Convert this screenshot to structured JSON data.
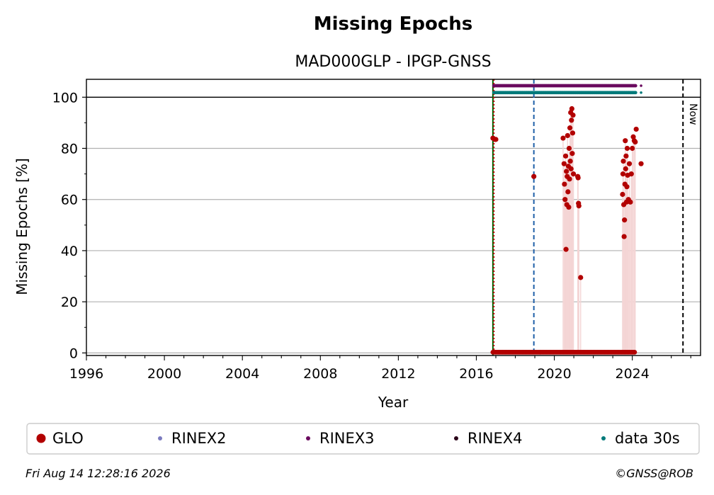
{
  "chart_data": {
    "type": "scatter",
    "title": "Missing Epochs",
    "subtitle": "MAD000GLP - IPGP-GNSS",
    "xlabel": "Year",
    "ylabel": "Missing Epochs [%]",
    "xlim": [
      1996,
      2027.5
    ],
    "ylim": [
      -1,
      107
    ],
    "xticks": [
      "1996",
      "2000",
      "2004",
      "2008",
      "2012",
      "2016",
      "2020",
      "2024"
    ],
    "yticks": [
      "0",
      "20",
      "40",
      "60",
      "80",
      "100"
    ],
    "grid": "y",
    "reference_line_y": 100,
    "vertical_lines": [
      {
        "x": 2016.85,
        "color": "#006400",
        "style": "solid"
      },
      {
        "x": 2016.9,
        "color": "#cc0000",
        "style": "dotted"
      },
      {
        "x": 2018.95,
        "color": "#1f5fa8",
        "style": "dashed"
      },
      {
        "x": 2026.6,
        "color": "#000000",
        "style": "dashed",
        "label": "Now"
      }
    ],
    "legend_position": "bottom",
    "series": [
      {
        "name": "GLO",
        "color": "#b20000",
        "points": [
          [
            2016.85,
            84
          ],
          [
            2016.95,
            83.5
          ],
          [
            2017.0,
            83.5
          ],
          [
            2018.95,
            69
          ],
          [
            2020.45,
            84
          ],
          [
            2020.5,
            74
          ],
          [
            2020.52,
            66
          ],
          [
            2020.55,
            60
          ],
          [
            2020.58,
            77
          ],
          [
            2020.6,
            40.5
          ],
          [
            2020.62,
            71
          ],
          [
            2020.64,
            58
          ],
          [
            2020.66,
            69
          ],
          [
            2020.68,
            85
          ],
          [
            2020.7,
            63
          ],
          [
            2020.72,
            73
          ],
          [
            2020.74,
            57
          ],
          [
            2020.76,
            80
          ],
          [
            2020.78,
            68
          ],
          [
            2020.8,
            88
          ],
          [
            2020.82,
            75
          ],
          [
            2020.84,
            94
          ],
          [
            2020.86,
            72
          ],
          [
            2020.88,
            91
          ],
          [
            2020.9,
            95.5
          ],
          [
            2020.92,
            78
          ],
          [
            2020.94,
            86
          ],
          [
            2020.96,
            93
          ],
          [
            2020.98,
            70
          ],
          [
            2021.2,
            69
          ],
          [
            2021.22,
            68.5
          ],
          [
            2021.24,
            58.5
          ],
          [
            2021.26,
            57.5
          ],
          [
            2021.35,
            29.5
          ],
          [
            2023.5,
            62
          ],
          [
            2023.52,
            70
          ],
          [
            2023.54,
            75
          ],
          [
            2023.56,
            58
          ],
          [
            2023.58,
            45.5
          ],
          [
            2023.6,
            52
          ],
          [
            2023.62,
            66
          ],
          [
            2023.64,
            83
          ],
          [
            2023.66,
            72
          ],
          [
            2023.68,
            77
          ],
          [
            2023.7,
            59
          ],
          [
            2023.72,
            65
          ],
          [
            2023.74,
            80
          ],
          [
            2023.76,
            69.5
          ],
          [
            2023.8,
            60
          ],
          [
            2023.85,
            74
          ],
          [
            2023.9,
            59
          ],
          [
            2023.95,
            70
          ],
          [
            2024.0,
            80
          ],
          [
            2024.05,
            84.5
          ],
          [
            2024.1,
            83
          ],
          [
            2024.15,
            82.5
          ],
          [
            2024.2,
            87.5
          ],
          [
            2024.45,
            74
          ]
        ],
        "zero_range": [
          2016.85,
          2024.15
        ]
      },
      {
        "name": "RINEX2",
        "color": "#7b7bbf",
        "points": []
      },
      {
        "name": "RINEX3",
        "color": "#6a0a5e",
        "band_y": 104.5,
        "range": [
          2016.9,
          2024.45
        ]
      },
      {
        "name": "RINEX4",
        "color": "#2a0018",
        "points": []
      },
      {
        "name": "data 30s",
        "color": "#007a7a",
        "band_y": 101.8,
        "range": [
          2016.9,
          2024.45
        ]
      }
    ]
  },
  "footer": {
    "timestamp": "Fri Aug 14 12:28:16 2026",
    "copyright": "©GNSS@ROB"
  }
}
